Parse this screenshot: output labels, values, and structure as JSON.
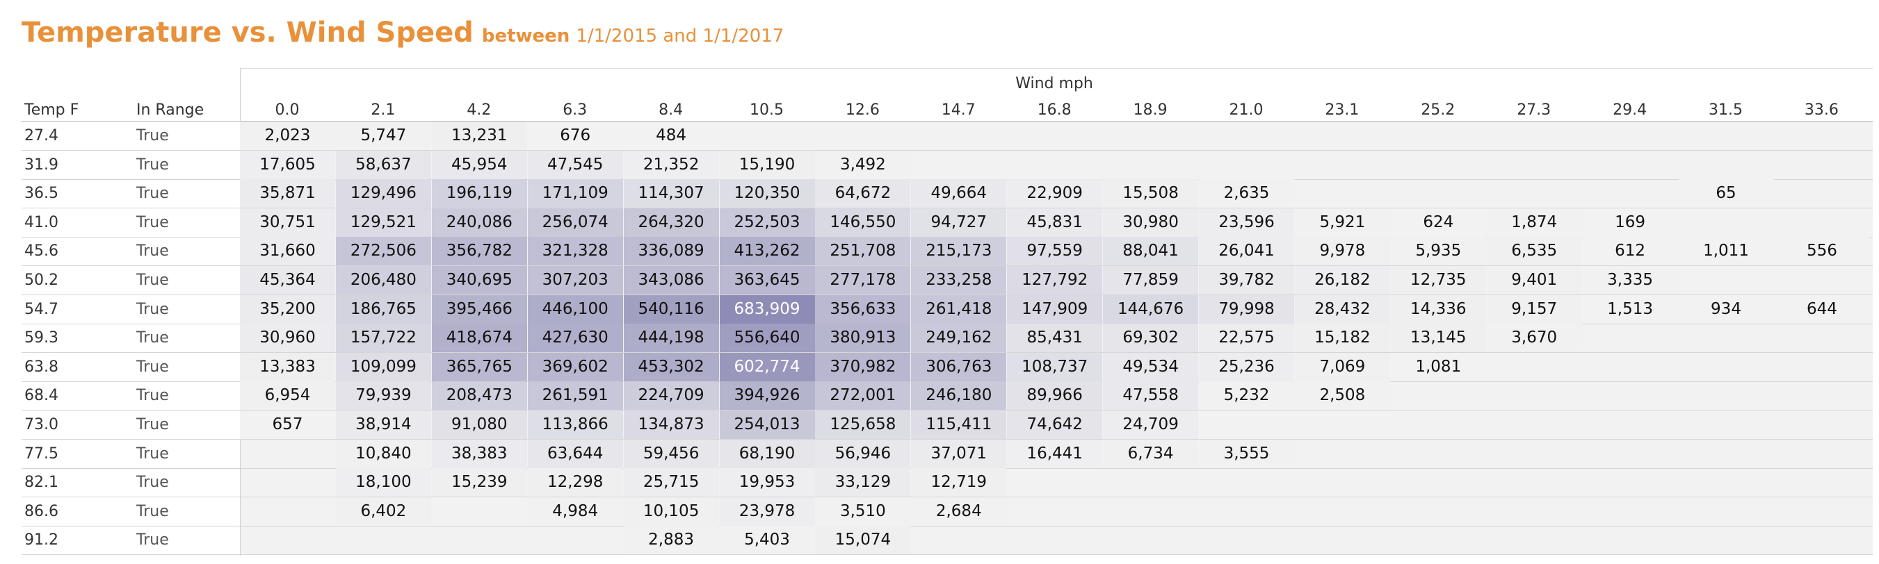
{
  "title": {
    "main": "Temperature vs. Wind Speed",
    "between": "between",
    "dates": "1/1/2015 and 1/1/2017"
  },
  "headers": {
    "temp": "Temp F",
    "in_range": "In Range",
    "wind": "Wind mph"
  },
  "chart_data": {
    "type": "heatmap",
    "title": "Temperature vs. Wind Speed between 1/1/2015 and 1/1/2017",
    "xlabel": "Wind mph",
    "ylabel": "Temp F",
    "x_categories": [
      "0.0",
      "2.1",
      "4.2",
      "6.3",
      "8.4",
      "10.5",
      "12.6",
      "14.7",
      "16.8",
      "18.9",
      "21.0",
      "23.1",
      "25.2",
      "27.3",
      "29.4",
      "31.5",
      "33.6"
    ],
    "rows": [
      {
        "temp": "27.4",
        "in_range": "True",
        "values": [
          2023,
          5747,
          13231,
          676,
          484,
          null,
          null,
          null,
          null,
          null,
          null,
          null,
          null,
          null,
          null,
          null,
          null
        ]
      },
      {
        "temp": "31.9",
        "in_range": "True",
        "values": [
          17605,
          58637,
          45954,
          47545,
          21352,
          15190,
          3492,
          null,
          null,
          null,
          null,
          null,
          null,
          null,
          null,
          null,
          null
        ]
      },
      {
        "temp": "36.5",
        "in_range": "True",
        "values": [
          35871,
          129496,
          196119,
          171109,
          114307,
          120350,
          64672,
          49664,
          22909,
          15508,
          2635,
          null,
          null,
          null,
          null,
          65,
          null
        ]
      },
      {
        "temp": "41.0",
        "in_range": "True",
        "values": [
          30751,
          129521,
          240086,
          256074,
          264320,
          252503,
          146550,
          94727,
          45831,
          30980,
          23596,
          5921,
          624,
          1874,
          169,
          null,
          null
        ]
      },
      {
        "temp": "45.6",
        "in_range": "True",
        "values": [
          31660,
          272506,
          356782,
          321328,
          336089,
          413262,
          251708,
          215173,
          97559,
          88041,
          26041,
          9978,
          5935,
          6535,
          612,
          1011,
          556
        ]
      },
      {
        "temp": "50.2",
        "in_range": "True",
        "values": [
          45364,
          206480,
          340695,
          307203,
          343086,
          363645,
          277178,
          233258,
          127792,
          77859,
          39782,
          26182,
          12735,
          9401,
          3335,
          null,
          null
        ]
      },
      {
        "temp": "54.7",
        "in_range": "True",
        "values": [
          35200,
          186765,
          395466,
          446100,
          540116,
          683909,
          356633,
          261418,
          147909,
          144676,
          79998,
          28432,
          14336,
          9157,
          1513,
          934,
          644
        ]
      },
      {
        "temp": "59.3",
        "in_range": "True",
        "values": [
          30960,
          157722,
          418674,
          427630,
          444198,
          556640,
          380913,
          249162,
          85431,
          69302,
          22575,
          15182,
          13145,
          3670,
          null,
          null,
          null
        ]
      },
      {
        "temp": "63.8",
        "in_range": "True",
        "values": [
          13383,
          109099,
          365765,
          369602,
          453302,
          602774,
          370982,
          306763,
          108737,
          49534,
          25236,
          7069,
          1081,
          null,
          null,
          null,
          null
        ]
      },
      {
        "temp": "68.4",
        "in_range": "True",
        "values": [
          6954,
          79939,
          208473,
          261591,
          224709,
          394926,
          272001,
          246180,
          89966,
          47558,
          5232,
          2508,
          null,
          null,
          null,
          null,
          null
        ]
      },
      {
        "temp": "73.0",
        "in_range": "True",
        "values": [
          657,
          38914,
          91080,
          113866,
          134873,
          254013,
          125658,
          115411,
          74642,
          24709,
          null,
          null,
          null,
          null,
          null,
          null,
          null
        ]
      },
      {
        "temp": "77.5",
        "in_range": "True",
        "values": [
          null,
          10840,
          38383,
          63644,
          59456,
          68190,
          56946,
          37071,
          16441,
          6734,
          3555,
          null,
          null,
          null,
          null,
          null,
          null
        ]
      },
      {
        "temp": "82.1",
        "in_range": "True",
        "values": [
          null,
          18100,
          15239,
          12298,
          25715,
          19953,
          33129,
          12719,
          null,
          null,
          null,
          null,
          null,
          null,
          null,
          null,
          null
        ]
      },
      {
        "temp": "86.6",
        "in_range": "True",
        "values": [
          null,
          6402,
          null,
          4984,
          10105,
          23978,
          3510,
          2684,
          null,
          null,
          null,
          null,
          null,
          null,
          null,
          null,
          null
        ]
      },
      {
        "temp": "91.2",
        "in_range": "True",
        "values": [
          null,
          null,
          null,
          null,
          2883,
          5403,
          15074,
          null,
          null,
          null,
          null,
          null,
          null,
          null,
          null,
          null,
          null
        ]
      }
    ],
    "color_scale": {
      "low": "#f2f2f2",
      "high": "#8e8cb6",
      "text_high": "#ffffff"
    },
    "grid": true,
    "legend": "none"
  }
}
